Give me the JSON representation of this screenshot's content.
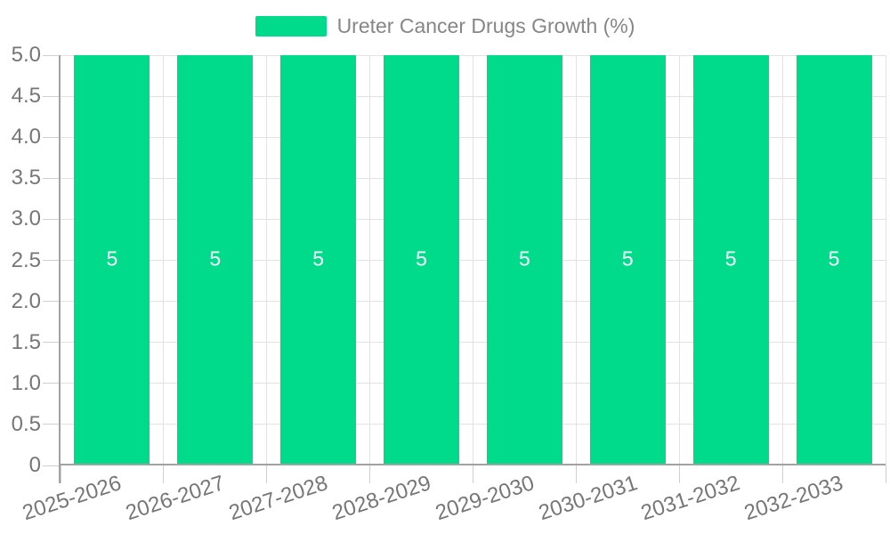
{
  "chart_data": {
    "type": "bar",
    "title": "Ureter Cancer Drugs Growth (%)",
    "legend": {
      "label": "Ureter Cancer Drugs Growth (%)",
      "position": "top-center"
    },
    "categories": [
      "2025-2026",
      "2026-2027",
      "2027-2028",
      "2028-2029",
      "2029-2030",
      "2030-2031",
      "2031-2032",
      "2032-2033"
    ],
    "series": [
      {
        "name": "Ureter Cancer Drugs Growth (%)",
        "values": [
          5,
          5,
          5,
          5,
          5,
          5,
          5,
          5
        ]
      }
    ],
    "bar_value_labels": [
      "5",
      "5",
      "5",
      "5",
      "5",
      "5",
      "5",
      "5"
    ],
    "xlabel": "",
    "ylabel": "",
    "ylim": [
      0,
      5
    ],
    "ytick_step": 0.5,
    "ytick_labels": [
      "0",
      "0.5",
      "1.0",
      "1.5",
      "2.0",
      "2.5",
      "3.0",
      "3.5",
      "4.0",
      "4.5",
      "5.0"
    ],
    "grid": true,
    "colors": {
      "bar": "#00DB8B",
      "axis_line": "#a2a2a2",
      "grid_line": "#e2e2e2",
      "tick_line": "#cfcfcf",
      "axis_text": "#767676",
      "legend_text": "#868686",
      "bar_label_text": "#ffffff",
      "background": "#ffffff"
    }
  }
}
